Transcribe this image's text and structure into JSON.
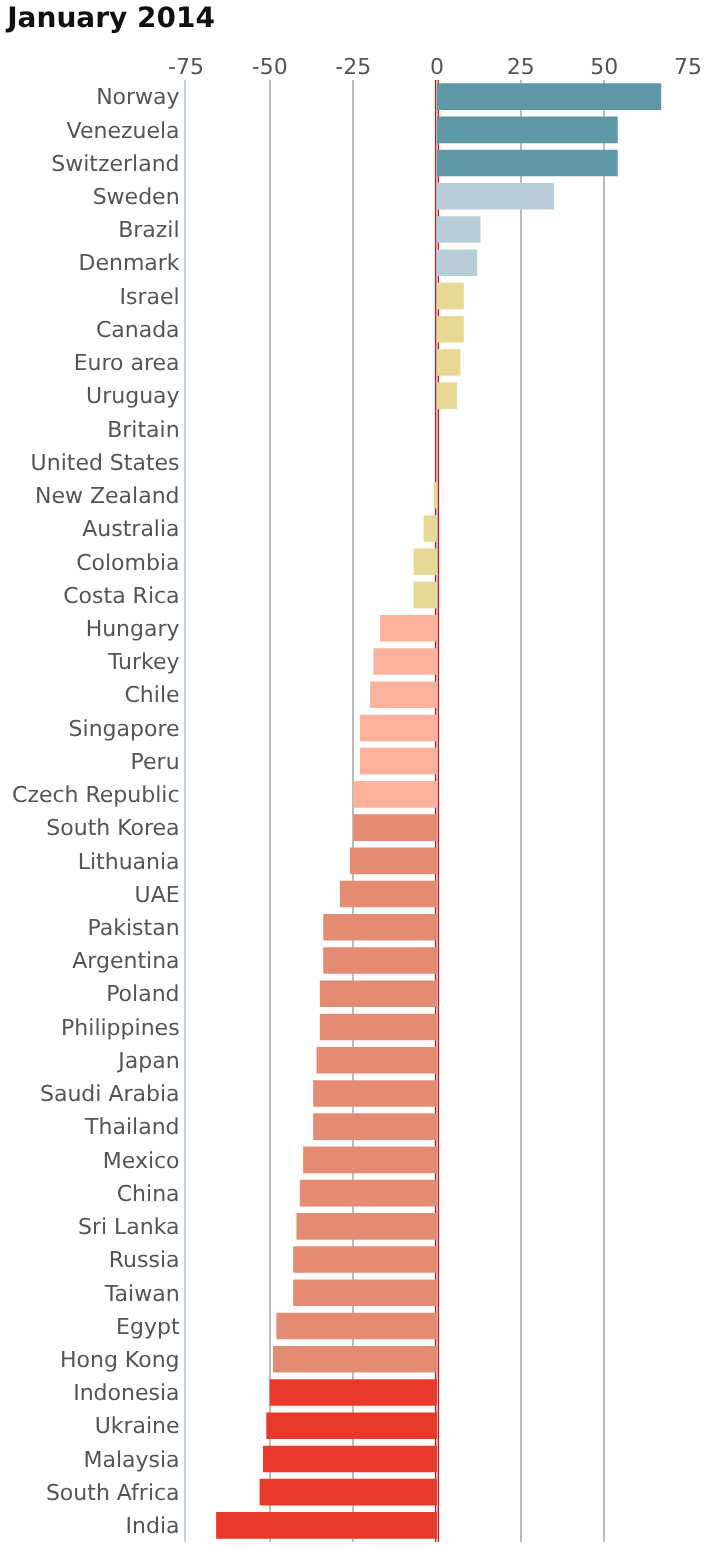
{
  "chart_data": {
    "type": "bar",
    "orientation": "horizontal",
    "title": "January 2014",
    "categories": [
      "Norway",
      "Venezuela",
      "Switzerland",
      "Sweden",
      "Brazil",
      "Denmark",
      "Israel",
      "Canada",
      "Euro area",
      "Uruguay",
      "Britain",
      "United States",
      "New Zealand",
      "Australia",
      "Colombia",
      "Costa Rica",
      "Hungary",
      "Turkey",
      "Chile",
      "Singapore",
      "Peru",
      "Czech Republic",
      "South Korea",
      "Lithuania",
      "UAE",
      "Pakistan",
      "Argentina",
      "Poland",
      "Philippines",
      "Japan",
      "Saudi Arabia",
      "Thailand",
      "Mexico",
      "China",
      "Sri Lanka",
      "Russia",
      "Taiwan",
      "Egypt",
      "Hong Kong",
      "Indonesia",
      "Ukraine",
      "Malaysia",
      "South Africa",
      "India"
    ],
    "values": [
      67,
      54,
      54,
      35,
      13,
      12,
      8,
      8,
      7,
      6,
      0,
      0,
      -1,
      -4,
      -7,
      -7,
      -17,
      -19,
      -20,
      -23,
      -23,
      -25,
      -25,
      -26,
      -29,
      -34,
      -34,
      -35,
      -35,
      -36,
      -37,
      -37,
      -40,
      -41,
      -42,
      -43,
      -43,
      -48,
      -49,
      -50,
      -51,
      -52,
      -53,
      -66
    ],
    "colors": [
      "#5e98a6",
      "#5e98a6",
      "#5e98a6",
      "#b8cdd8",
      "#b8cdd8",
      "#b8cdd8",
      "#e8d896",
      "#e8d896",
      "#e8d896",
      "#e8d896",
      "#e8d896",
      "#e8d896",
      "#e8d896",
      "#e8d896",
      "#e8d896",
      "#e8d896",
      "#fdb09b",
      "#fdb09b",
      "#fdb09b",
      "#fdb09b",
      "#fdb09b",
      "#fdb09b",
      "#e48b74",
      "#e48b74",
      "#e48b74",
      "#e48b74",
      "#e48b74",
      "#e48b74",
      "#e48b74",
      "#e48b74",
      "#e48b74",
      "#e48b74",
      "#e48b74",
      "#e48b74",
      "#e48b74",
      "#e48b74",
      "#e48b74",
      "#e48b74",
      "#e48b74",
      "#e8392a",
      "#e8392a",
      "#e8392a",
      "#e8392a",
      "#e8392a"
    ],
    "xlim": [
      -75,
      75
    ],
    "xticks": [
      -75,
      -50,
      -25,
      0,
      25,
      50,
      75
    ],
    "grid": "x",
    "ref_lines": [
      {
        "axis": "x",
        "value": 0,
        "color": "#ff0000"
      }
    ]
  }
}
